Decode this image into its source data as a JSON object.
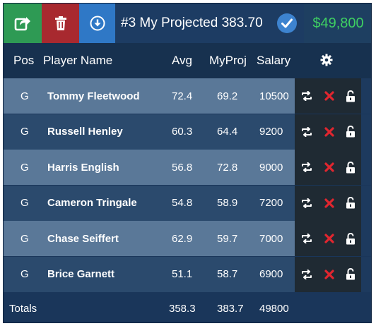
{
  "toolbar": {
    "export_icon": "export-icon",
    "delete_icon": "trash-icon",
    "download_icon": "download-icon",
    "title": "#3 My Projected 383.70",
    "check_icon": "check-icon",
    "salary_remaining": "$49,800"
  },
  "columns": {
    "pos": "Pos",
    "name": "Player Name",
    "avg": "Avg",
    "myproj": "MyProj",
    "salary": "Salary",
    "settings_icon": "gear-icon"
  },
  "rows": [
    {
      "pos": "G",
      "name": "Tommy Fleetwood",
      "avg": "72.4",
      "myproj": "69.2",
      "salary": "10500"
    },
    {
      "pos": "G",
      "name": "Russell Henley",
      "avg": "60.3",
      "myproj": "64.4",
      "salary": "9200"
    },
    {
      "pos": "G",
      "name": "Harris English",
      "avg": "56.8",
      "myproj": "72.8",
      "salary": "9000"
    },
    {
      "pos": "G",
      "name": "Cameron Tringale",
      "avg": "54.8",
      "myproj": "58.9",
      "salary": "7200"
    },
    {
      "pos": "G",
      "name": "Chase Seiffert",
      "avg": "62.9",
      "myproj": "59.7",
      "salary": "7000"
    },
    {
      "pos": "G",
      "name": "Brice Garnett",
      "avg": "51.1",
      "myproj": "58.7",
      "salary": "6900"
    }
  ],
  "row_actions": {
    "swap_icon": "swap-icon",
    "remove_icon": "remove-x-icon",
    "lock_icon": "unlock-icon"
  },
  "totals": {
    "label": "Totals",
    "avg": "358.3",
    "myproj": "383.7",
    "salary": "49800"
  },
  "colors": {
    "export_bg": "#2e9a54",
    "delete_bg": "#a8292f",
    "download_bg": "#2f78c6",
    "salary_text": "#3ecf62",
    "remove_x": "#e0262f"
  }
}
